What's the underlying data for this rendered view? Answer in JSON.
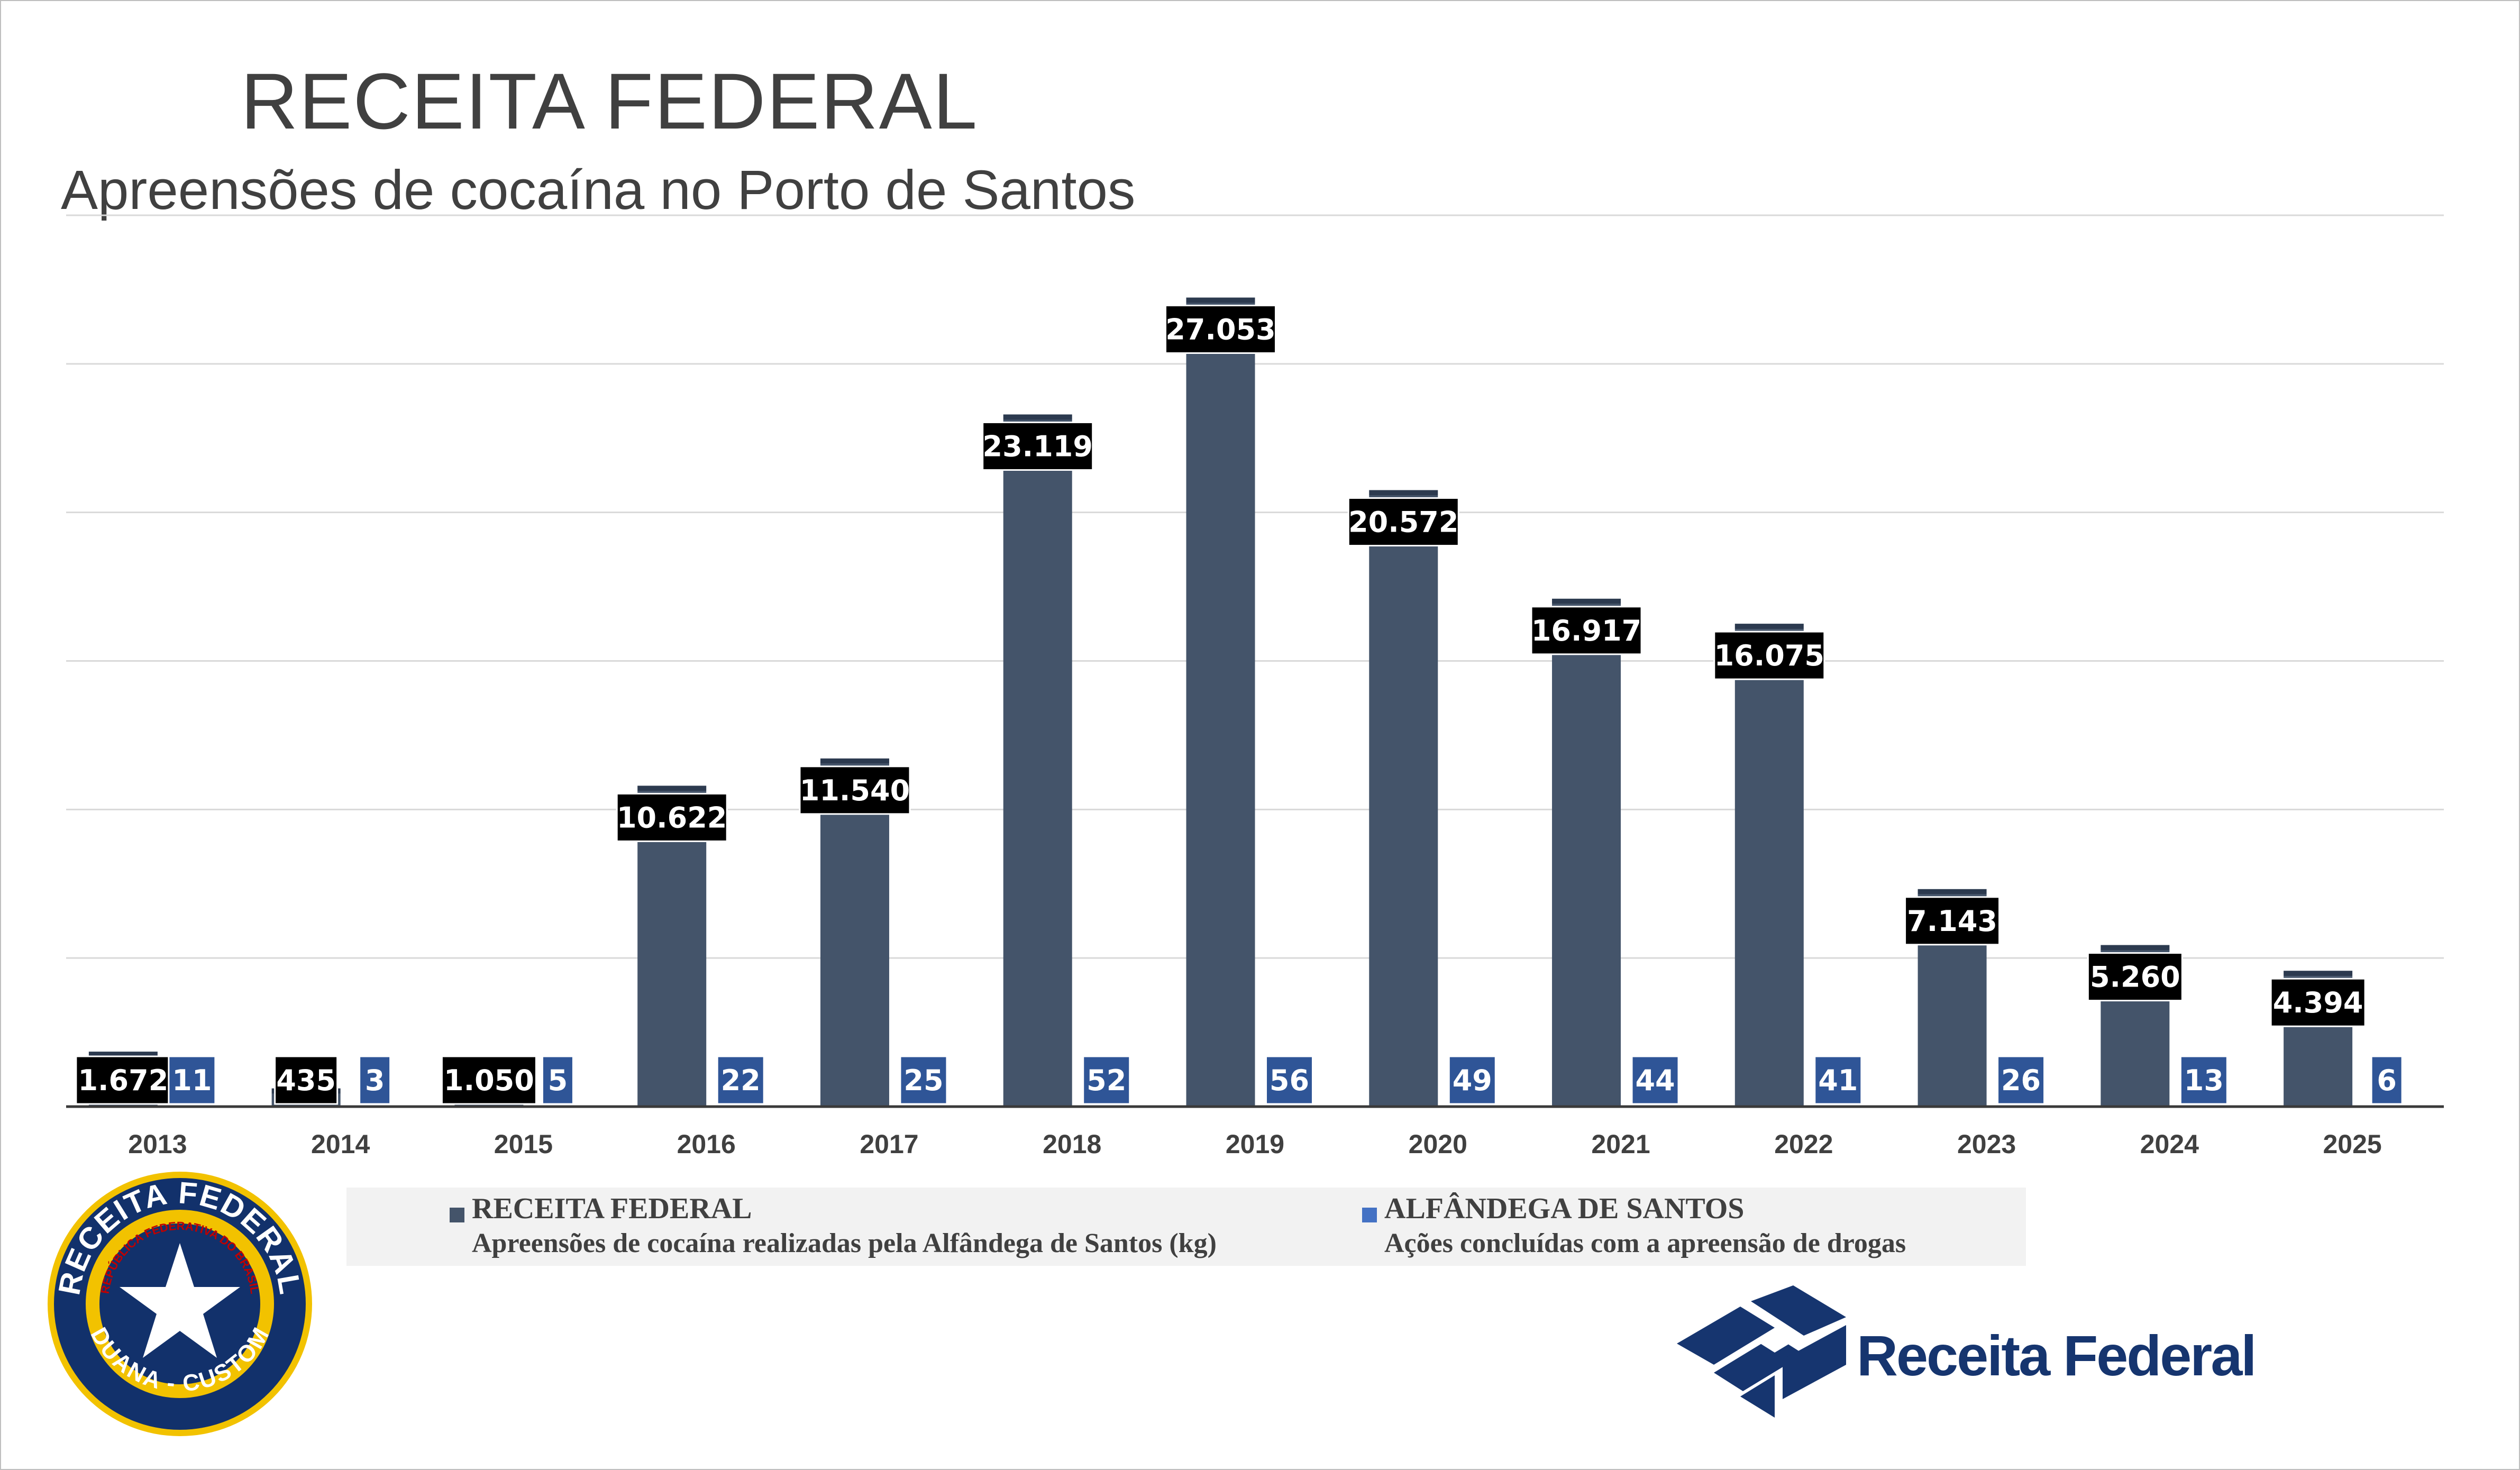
{
  "title": "RECEITA FEDERAL",
  "subtitle": "Apreensões de cocaína no Porto de Santos",
  "chart_data": {
    "type": "bar",
    "title": "Apreensões de cocaína no Porto de Santos",
    "categories": [
      "2013",
      "2014",
      "2015",
      "2016",
      "2017",
      "2018",
      "2019",
      "2020",
      "2021",
      "2022",
      "2023",
      "2024",
      "2025"
    ],
    "series": [
      {
        "name": "RECEITA FEDERAL",
        "description": "Apreensões de cocaína realizadas pela Alfândega de Santos (kg)",
        "color": "#44546a",
        "values": [
          1672,
          435,
          1050,
          10622,
          11540,
          23119,
          27053,
          20572,
          16917,
          16075,
          7143,
          5260,
          4394
        ],
        "labels": [
          "1.672",
          "435",
          "1.050",
          "10.622",
          "11.540",
          "23.119",
          "27.053",
          "20.572",
          "16.917",
          "16.075",
          "7.143",
          "5.260",
          "4.394"
        ],
        "label_bg": "#000000"
      },
      {
        "name": "ALFÂNDEGA DE SANTOS",
        "description": "Ações concluídas com a apreensão de drogas",
        "color": "#4472c4",
        "values": [
          11,
          3,
          5,
          22,
          25,
          52,
          56,
          49,
          44,
          41,
          26,
          13,
          6
        ],
        "labels": [
          "11",
          "3",
          "5",
          "22",
          "25",
          "52",
          "56",
          "49",
          "44",
          "41",
          "26",
          "13",
          "6"
        ],
        "label_bg": "#2f5597"
      }
    ],
    "ylim": [
      0,
      30000
    ],
    "grid": true,
    "gridline_step": 5000,
    "legend": "bottom",
    "xlabel": "",
    "ylabel": ""
  },
  "legend": {
    "items": [
      {
        "name": "RECEITA FEDERAL",
        "description": "Apreensões de cocaína realizadas pela Alfândega de Santos (kg)",
        "color": "#44546a"
      },
      {
        "name": "ALFÂNDEGA DE SANTOS",
        "description": "Ações concluídas com a apreensão de drogas",
        "color": "#4472c4"
      }
    ]
  },
  "seal": {
    "top_text": "RECEITA FEDERAL",
    "inner_text": "REPÚBLICA FEDERATIVA DO BRASIL",
    "bottom_text": "ADUANA - CUSTOMS"
  },
  "logo": {
    "text": "Receita Federal"
  },
  "colors": {
    "bar_dark": "#44546a",
    "bar_blue": "#4472c4",
    "brand_navy": "#16356f",
    "gold": "#f2c200"
  }
}
